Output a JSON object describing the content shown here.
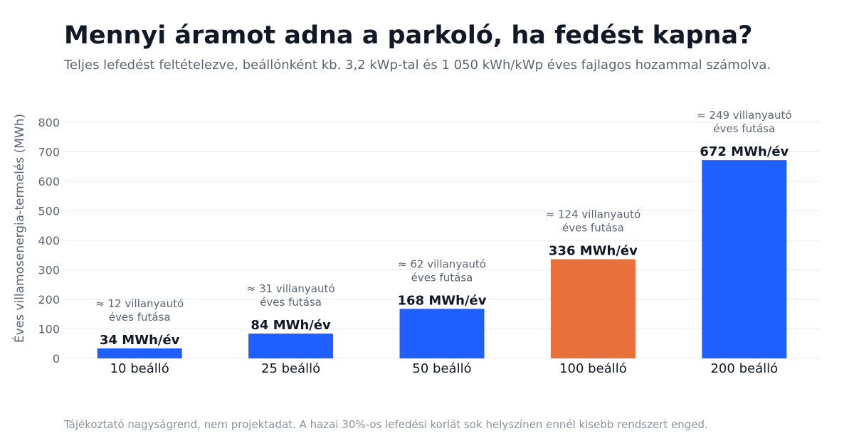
{
  "header": {
    "title": "Mennyi áramot adna a parkoló, ha fedést kapna?",
    "subtitle": "Teljes lefedést feltételezve, beállónként kb. 3,2 kWp-tal és 1 050 kWh/kWp éves fajlagos hozammal számolva."
  },
  "footnote": "Tájékoztató nagyságrend, nem projektadat. A hazai 30%-os lefedési korlát sok helyszínen ennél kisebb rendszert enged.",
  "chart_data": {
    "type": "bar",
    "ylabel": "Éves villamosenergia-termelés (MWh)",
    "xlabel": "",
    "ylim": [
      0,
      800
    ],
    "yticks": [
      "0",
      "100",
      "200",
      "300",
      "400",
      "500",
      "600",
      "700",
      "800"
    ],
    "grid": true,
    "categories": [
      "10 beálló",
      "25 beálló",
      "50 beálló",
      "100 beálló",
      "200 beálló"
    ],
    "values": [
      34,
      84,
      168,
      336,
      672
    ],
    "value_labels": [
      "34 MWh/év",
      "84 MWh/év",
      "168 MWh/év",
      "336 MWh/év",
      "672 MWh/év"
    ],
    "annotations": [
      [
        "≈ 12 villanyautó",
        "éves futása"
      ],
      [
        "≈ 31 villanyautó",
        "éves futása"
      ],
      [
        "≈ 62 villanyautó",
        "éves futása"
      ],
      [
        "≈ 124 villanyautó",
        "éves futása"
      ],
      [
        "≈ 249 villanyautó",
        "éves futása"
      ]
    ],
    "bar_colors": [
      "#1f5eff",
      "#1f5eff",
      "#1f5eff",
      "#e8703a",
      "#1f5eff"
    ],
    "colors": {
      "grid": "#e6eaf0",
      "axis_text": "#5b6577",
      "category_text": "#111827",
      "value_text": "#111827",
      "annotation_text": "#5b6577"
    }
  }
}
